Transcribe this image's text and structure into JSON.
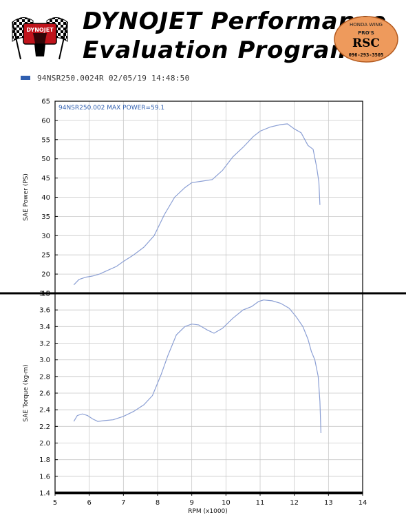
{
  "header": {
    "title_line1": "DYNOJET Performance",
    "title_line2": "Evaluation Program",
    "left_logo_text": "DYNOJET",
    "right_logo_lines": [
      "HONDA WING",
      "PRO'S",
      "RSC",
      "096-293-3505"
    ]
  },
  "legend": {
    "label": "94NSR250.0024R  02/05/19 14:48:50",
    "color": "#2f5fb0"
  },
  "colors": {
    "series": "#8b9fd4",
    "grid": "#c8c8c8",
    "divider": "#000000"
  },
  "chart_data": [
    {
      "type": "line",
      "annotation": "94NSR250.002  MAX POWER=59.1",
      "ylabel": "SAE Power (PS)",
      "xlabel": "",
      "xlim": [
        5,
        14
      ],
      "ylim": [
        15,
        65
      ],
      "yticks": [
        15,
        20,
        25,
        30,
        35,
        40,
        45,
        50,
        55,
        60,
        65
      ],
      "grid": true,
      "series": [
        {
          "x": [
            5.55,
            5.7,
            5.9,
            6.1,
            6.3,
            6.5,
            6.8,
            7.0,
            7.3,
            7.6,
            7.9,
            8.2,
            8.5,
            8.8,
            9.0,
            9.3,
            9.6,
            9.9,
            10.2,
            10.5,
            10.8,
            11.0,
            11.3,
            11.6,
            11.8,
            12.0,
            12.2,
            12.4,
            12.55,
            12.65,
            12.72,
            12.75
          ],
          "y": [
            17.2,
            18.6,
            19.2,
            19.5,
            20.0,
            20.8,
            22.0,
            23.3,
            25.0,
            27.0,
            30.0,
            35.5,
            40.0,
            42.5,
            43.8,
            44.2,
            44.6,
            47.0,
            50.5,
            53.0,
            55.8,
            57.2,
            58.3,
            58.9,
            59.1,
            57.8,
            56.8,
            53.5,
            52.5,
            48.0,
            44.0,
            38.0
          ]
        }
      ]
    },
    {
      "type": "line",
      "ylabel": "SAE Torque (kg-m)",
      "xlabel": "RPM (x1000)",
      "xlim": [
        5,
        14
      ],
      "ylim": [
        1.4,
        3.8
      ],
      "yticks": [
        1.4,
        1.6,
        1.8,
        2.0,
        2.2,
        2.4,
        2.6,
        2.8,
        3.0,
        3.2,
        3.4,
        3.6,
        3.8
      ],
      "xticks": [
        5,
        6,
        7,
        8,
        9,
        10,
        11,
        12,
        13,
        14
      ],
      "grid": true,
      "series": [
        {
          "x": [
            5.55,
            5.65,
            5.8,
            5.95,
            6.1,
            6.25,
            6.45,
            6.7,
            7.0,
            7.3,
            7.6,
            7.85,
            8.1,
            8.3,
            8.55,
            8.8,
            9.0,
            9.2,
            9.45,
            9.65,
            9.9,
            10.2,
            10.5,
            10.75,
            10.95,
            11.1,
            11.35,
            11.6,
            11.85,
            12.05,
            12.25,
            12.4,
            12.5,
            12.6,
            12.7,
            12.75,
            12.78
          ],
          "y": [
            2.26,
            2.33,
            2.35,
            2.33,
            2.29,
            2.26,
            2.27,
            2.28,
            2.32,
            2.38,
            2.46,
            2.57,
            2.82,
            3.05,
            3.3,
            3.4,
            3.43,
            3.42,
            3.36,
            3.32,
            3.38,
            3.5,
            3.6,
            3.64,
            3.7,
            3.72,
            3.71,
            3.68,
            3.62,
            3.52,
            3.4,
            3.25,
            3.1,
            3.0,
            2.8,
            2.5,
            2.12
          ]
        }
      ]
    }
  ]
}
